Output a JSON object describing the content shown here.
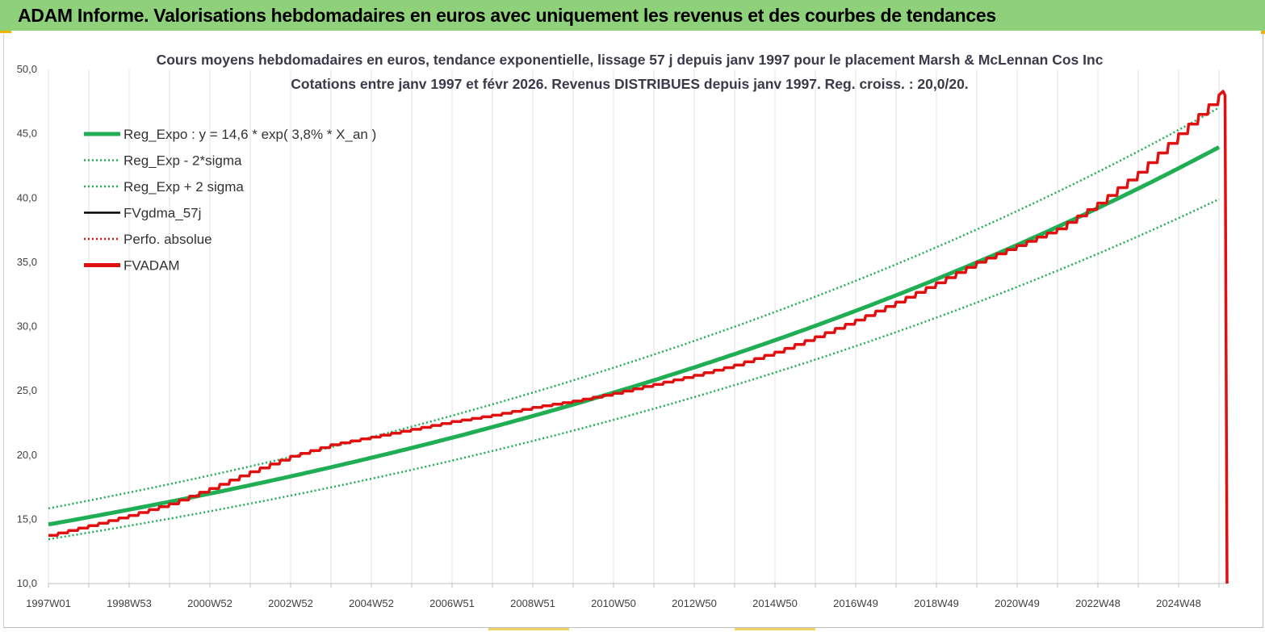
{
  "banner": {
    "title": "ADAM Informe. Valorisations hebdomadaires en euros avec uniquement les revenus et des courbes de tendances"
  },
  "chart_data": {
    "type": "line",
    "title_line1": "Cours moyens hebdomadaires en euros, tendance exponentielle, lissage 57 j depuis janv 1997  pour le placement Marsh & McLennan Cos Inc",
    "title_line2": "Cotations entre janv 1997 et févr 2026. Revenus DISTRIBUES depuis janv 1997. Reg. croiss. : 20,0/20.",
    "xlabel": "",
    "ylabel": "",
    "ylim": [
      10,
      50
    ],
    "y_ticks": [
      "10,0",
      "15,0",
      "20,0",
      "25,0",
      "30,0",
      "35,0",
      "40,0",
      "45,0",
      "50,0"
    ],
    "x_tick_labels": [
      "1997W01",
      "1998W53",
      "2000W52",
      "2002W52",
      "2004W52",
      "2006W51",
      "2008W51",
      "2010W50",
      "2012W50",
      "2014W50",
      "2016W49",
      "2018W49",
      "2020W49",
      "2022W48",
      "2024W48"
    ],
    "x_range_years": [
      1997.0,
      2026.2
    ],
    "grid": "vertical",
    "legend_position": "top-left",
    "series": [
      {
        "name": "Reg_Expo : y = 14,6 * exp( 3,8% *  X_an )",
        "color": "#1fae54",
        "style": "solid-thick",
        "formula": {
          "a": 14.6,
          "rate": 0.038
        }
      },
      {
        "name": "Reg_Exp - 2*sigma",
        "color": "#1fae54",
        "style": "dotted",
        "formula": {
          "a": 13.45,
          "rate": 0.0375
        }
      },
      {
        "name": "Reg_Exp + 2 sigma",
        "color": "#1fae54",
        "style": "dotted",
        "formula": {
          "a": 15.85,
          "rate": 0.0375
        }
      },
      {
        "name": "FVgdma_57j",
        "color": "#000000",
        "style": "solid"
      },
      {
        "name": "Perfo. absolue",
        "color": "#e01010",
        "style": "dotted"
      },
      {
        "name": "FVADAM",
        "color": "#e01010",
        "style": "solid-thick",
        "points": [
          [
            1997.0,
            13.75
          ],
          [
            1998.0,
            14.5
          ],
          [
            1999.0,
            15.3
          ],
          [
            2000.0,
            16.2
          ],
          [
            2001.0,
            17.4
          ],
          [
            2002.0,
            18.7
          ],
          [
            2003.0,
            19.9
          ],
          [
            2004.0,
            20.8
          ],
          [
            2005.0,
            21.4
          ],
          [
            2006.0,
            22.0
          ],
          [
            2007.0,
            22.6
          ],
          [
            2008.0,
            23.1
          ],
          [
            2009.0,
            23.7
          ],
          [
            2010.0,
            24.2
          ],
          [
            2011.0,
            24.8
          ],
          [
            2012.0,
            25.5
          ],
          [
            2013.0,
            26.2
          ],
          [
            2014.0,
            27.0
          ],
          [
            2015.0,
            28.0
          ],
          [
            2016.0,
            29.2
          ],
          [
            2017.0,
            30.5
          ],
          [
            2018.0,
            31.9
          ],
          [
            2019.0,
            33.4
          ],
          [
            2020.0,
            35.0
          ],
          [
            2021.0,
            36.3
          ],
          [
            2022.0,
            37.6
          ],
          [
            2023.0,
            39.6
          ],
          [
            2024.0,
            42.0
          ],
          [
            2025.0,
            45.0
          ],
          [
            2025.8,
            47.4
          ],
          [
            2026.1,
            48.3
          ],
          [
            2026.15,
            48.0
          ],
          [
            2026.2,
            10.0
          ]
        ]
      }
    ]
  }
}
